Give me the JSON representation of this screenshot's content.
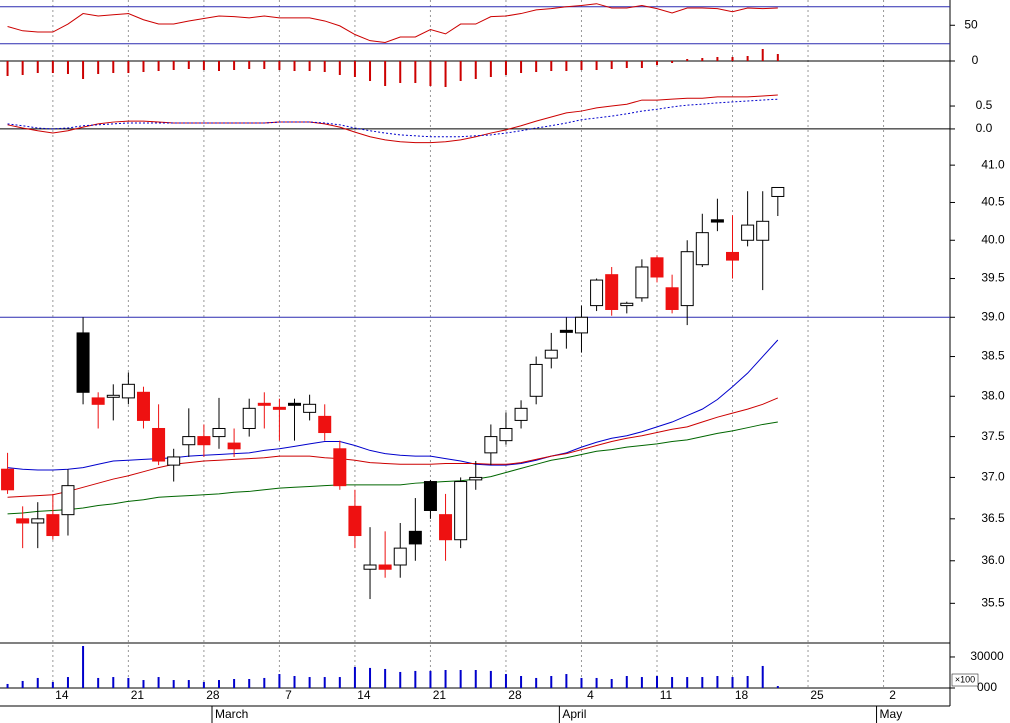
{
  "chart_data": [
    {
      "type": "line",
      "ylim": [
        -8,
        91
      ],
      "yticks": [
        50
      ],
      "levels": [
        20,
        80
      ],
      "level_color": "#2b2bb0",
      "series": [
        {
          "color": "#cc0000",
          "values": [
            48,
            41,
            39,
            39,
            52,
            69,
            65,
            67,
            69,
            59,
            52,
            52,
            57,
            61,
            65,
            64,
            62,
            65,
            62,
            62,
            62,
            57,
            49,
            35,
            25,
            22,
            31,
            31,
            43,
            36,
            52,
            52,
            64,
            65,
            69,
            75,
            77,
            80,
            82,
            85,
            78,
            78,
            82,
            77,
            70,
            78,
            78,
            77,
            72,
            78,
            77,
            78
          ]
        }
      ]
    },
    {
      "type": "bar",
      "ylim": [
        -1.45,
        0.85
      ],
      "yticks": [
        0
      ],
      "levels": [
        0
      ],
      "level_color": "#000000",
      "color": "#cc0000",
      "values": [
        -0.75,
        -0.7,
        -0.6,
        -0.6,
        -0.65,
        -0.9,
        -0.65,
        -0.6,
        -0.6,
        -0.55,
        -0.5,
        -0.45,
        -0.4,
        -0.45,
        -0.5,
        -0.45,
        -0.4,
        -0.4,
        -0.45,
        -0.5,
        -0.5,
        -0.55,
        -0.7,
        -0.8,
        -1.0,
        -1.25,
        -1.1,
        -1.1,
        -1.25,
        -1.3,
        -1.0,
        -0.9,
        -0.8,
        -0.7,
        -0.6,
        -0.55,
        -0.5,
        -0.5,
        -0.45,
        -0.45,
        -0.4,
        -0.35,
        -0.35,
        -0.2,
        -0.1,
        0.1,
        0.15,
        0.2,
        0.2,
        0.25,
        0.6,
        0.35
      ]
    },
    {
      "type": "line",
      "ylim": [
        -0.46,
        0.85
      ],
      "yticks": [
        {
          "value": 0,
          "label": "0.0"
        },
        0.5
      ],
      "levels": [
        0
      ],
      "level_color": "#000000",
      "series": [
        {
          "color": "#cc0000",
          "values": [
            0.09,
            0.02,
            -0.04,
            -0.09,
            -0.04,
            0.04,
            0.11,
            0.15,
            0.17,
            0.17,
            0.15,
            0.13,
            0.13,
            0.13,
            0.13,
            0.13,
            0.13,
            0.13,
            0.15,
            0.15,
            0.15,
            0.11,
            0.04,
            -0.07,
            -0.17,
            -0.24,
            -0.28,
            -0.3,
            -0.3,
            -0.28,
            -0.24,
            -0.17,
            -0.09,
            -0.02,
            0.07,
            0.17,
            0.26,
            0.35,
            0.39,
            0.46,
            0.5,
            0.54,
            0.63,
            0.63,
            0.65,
            0.67,
            0.67,
            0.7,
            0.7,
            0.7,
            0.72,
            0.74
          ]
        },
        {
          "color": "#0000cc",
          "dashed": true,
          "values": [
            0.11,
            0.07,
            0.02,
            0,
            0.02,
            0.07,
            0.09,
            0.11,
            0.13,
            0.13,
            0.13,
            0.13,
            0.13,
            0.13,
            0.13,
            0.13,
            0.13,
            0.13,
            0.15,
            0.15,
            0.15,
            0.13,
            0.09,
            0.02,
            -0.04,
            -0.09,
            -0.13,
            -0.15,
            -0.17,
            -0.17,
            -0.17,
            -0.15,
            -0.13,
            -0.09,
            -0.04,
            0.02,
            0.07,
            0.13,
            0.2,
            0.24,
            0.28,
            0.33,
            0.39,
            0.43,
            0.48,
            0.52,
            0.54,
            0.57,
            0.59,
            0.61,
            0.63,
            0.65
          ]
        }
      ]
    },
    {
      "type": "candlestick",
      "log_scale": true,
      "ylim": [
        35.04,
        41.49
      ],
      "yticks": [
        {
          "value": 41,
          "label": "41.0"
        },
        40.5,
        {
          "value": 40,
          "label": "40.0"
        },
        39.5,
        {
          "value": 39,
          "label": "39.0"
        },
        38.5,
        {
          "value": 38,
          "label": "38.0"
        },
        37.5,
        {
          "value": 37,
          "label": "37.0"
        },
        36.5,
        {
          "value": 36,
          "label": "36.0"
        },
        35.5
      ],
      "levels": [
        39
      ],
      "level_color": "#2b2bb0",
      "open": [
        37.1,
        36.5,
        36.45,
        36.55,
        36.55,
        38.8,
        37.98,
        37.98,
        37.98,
        38.05,
        37.6,
        37.15,
        37.4,
        37.5,
        37.5,
        37.42,
        37.6,
        37.9,
        37.85,
        37.9,
        37.8,
        37.75,
        37.35,
        36.65,
        35.9,
        35.95,
        35.95,
        36.35,
        36.95,
        36.55,
        36.25,
        36.97,
        37.3,
        37.45,
        37.7,
        38.0,
        38.48,
        38.8,
        38.8,
        39.15,
        39.55,
        39.15,
        39.25,
        39.77,
        39.38,
        39.15,
        39.68,
        40.27,
        39.84,
        40.0,
        40.0,
        40.58
      ],
      "high": [
        37.3,
        36.65,
        36.7,
        36.8,
        37.1,
        39.0,
        38.05,
        38.15,
        38.3,
        38.12,
        37.9,
        37.35,
        37.85,
        37.65,
        37.98,
        37.6,
        37.97,
        38.05,
        37.97,
        37.97,
        38.02,
        37.9,
        37.45,
        36.85,
        36.4,
        36.35,
        36.45,
        36.75,
        36.97,
        36.8,
        37.0,
        37.2,
        37.65,
        37.8,
        37.95,
        38.5,
        38.8,
        39.0,
        39.15,
        39.5,
        39.65,
        39.2,
        39.75,
        39.8,
        39.55,
        40.0,
        40.35,
        40.55,
        40.33,
        40.65,
        40.65,
        40.7
      ],
      "low": [
        36.8,
        36.15,
        36.15,
        36.25,
        36.3,
        37.9,
        37.6,
        37.7,
        37.9,
        37.6,
        37.15,
        36.95,
        37.25,
        37.25,
        37.35,
        37.25,
        37.5,
        37.6,
        37.45,
        37.45,
        37.7,
        37.45,
        36.85,
        36.15,
        35.55,
        35.8,
        35.8,
        36.0,
        36.5,
        36.0,
        36.15,
        36.85,
        37.15,
        37.4,
        37.6,
        37.9,
        38.35,
        38.6,
        38.55,
        39.08,
        39.02,
        39.05,
        39.2,
        39.45,
        39.05,
        38.9,
        39.65,
        40.12,
        39.5,
        39.92,
        39.35,
        40.32
      ],
      "close": [
        36.85,
        36.45,
        36.5,
        36.3,
        36.9,
        38.05,
        37.9,
        38.0,
        38.15,
        37.7,
        37.2,
        37.25,
        37.5,
        37.4,
        37.6,
        37.35,
        37.85,
        37.88,
        37.83,
        37.88,
        37.9,
        37.55,
        36.9,
        36.3,
        35.95,
        35.9,
        36.15,
        36.2,
        36.6,
        36.25,
        36.95,
        37.0,
        37.5,
        37.6,
        37.85,
        38.4,
        38.58,
        38.82,
        39.0,
        39.48,
        39.1,
        39.18,
        39.65,
        39.52,
        39.1,
        39.85,
        40.1,
        40.24,
        39.74,
        40.2,
        40.25,
        40.7
      ],
      "colors": [
        "#ee1111",
        "#ee1111",
        "#ffffff",
        "#ee1111",
        "#ffffff",
        "#000000",
        "#ee1111",
        "#ffffff",
        "#ffffff",
        "#ee1111",
        "#ee1111",
        "#ffffff",
        "#ffffff",
        "#ee1111",
        "#ffffff",
        "#ee1111",
        "#ffffff",
        "#ee1111",
        "#ee1111",
        "#000000",
        "#ffffff",
        "#ee1111",
        "#ee1111",
        "#ee1111",
        "#ffffff",
        "#ee1111",
        "#ffffff",
        "#000000",
        "#000000",
        "#ee1111",
        "#ffffff",
        "#ffffff",
        "#ffffff",
        "#ffffff",
        "#ffffff",
        "#ffffff",
        "#ffffff",
        "#000000",
        "#ffffff",
        "#ffffff",
        "#ee1111",
        "#ffffff",
        "#ffffff",
        "#ee1111",
        "#ee1111",
        "#ffffff",
        "#ffffff",
        "#000000",
        "#ee1111",
        "#ffffff",
        "#ffffff",
        "#ffffff"
      ],
      "series": [
        {
          "color": "#0000cc",
          "values": [
            37.12,
            37.1,
            37.09,
            37.09,
            37.1,
            37.12,
            37.16,
            37.2,
            37.21,
            37.22,
            37.23,
            37.24,
            37.26,
            37.27,
            37.28,
            37.29,
            37.3,
            37.33,
            37.35,
            37.38,
            37.41,
            37.44,
            37.44,
            37.39,
            37.33,
            37.29,
            37.27,
            37.26,
            37.26,
            37.23,
            37.2,
            37.16,
            37.15,
            37.15,
            37.17,
            37.21,
            37.26,
            37.3,
            37.37,
            37.43,
            37.48,
            37.51,
            37.56,
            37.62,
            37.68,
            37.76,
            37.84,
            37.96,
            38.12,
            38.29,
            38.5,
            38.71
          ]
        },
        {
          "color": "#cc0000",
          "values": [
            36.76,
            36.77,
            36.78,
            36.79,
            36.83,
            36.88,
            36.93,
            36.98,
            37.02,
            37.07,
            37.12,
            37.16,
            37.18,
            37.2,
            37.21,
            37.22,
            37.23,
            37.24,
            37.26,
            37.26,
            37.26,
            37.24,
            37.23,
            37.21,
            37.18,
            37.17,
            37.16,
            37.16,
            37.16,
            37.17,
            37.17,
            37.17,
            37.16,
            37.16,
            37.18,
            37.22,
            37.26,
            37.29,
            37.34,
            37.39,
            37.44,
            37.48,
            37.51,
            37.55,
            37.59,
            37.62,
            37.68,
            37.74,
            37.79,
            37.84,
            37.9,
            37.98
          ]
        },
        {
          "color": "#006600",
          "values": [
            36.56,
            36.57,
            36.59,
            36.6,
            36.61,
            36.63,
            36.66,
            36.68,
            36.71,
            36.73,
            36.76,
            36.77,
            36.78,
            36.79,
            36.8,
            36.82,
            36.83,
            36.85,
            36.87,
            36.88,
            36.89,
            36.9,
            36.91,
            36.91,
            36.91,
            36.91,
            36.91,
            36.93,
            36.94,
            36.95,
            36.96,
            36.98,
            37.01,
            37.06,
            37.11,
            37.16,
            37.21,
            37.24,
            37.28,
            37.32,
            37.34,
            37.37,
            37.39,
            37.41,
            37.44,
            37.46,
            37.5,
            37.54,
            37.57,
            37.61,
            37.65,
            37.68
          ]
        }
      ]
    },
    {
      "type": "bar",
      "ylim": [
        0,
        43500
      ],
      "yticks": [
        {
          "value": 0,
          "label": "000"
        },
        30000
      ],
      "unit_label": "×100",
      "color": "#0000cc",
      "values": [
        3900,
        6800,
        9700,
        5800,
        10600,
        40600,
        9700,
        10600,
        9700,
        7700,
        10600,
        7700,
        7700,
        5800,
        7700,
        8700,
        8700,
        9700,
        13500,
        11600,
        10600,
        10600,
        10600,
        20300,
        19400,
        18400,
        15500,
        16500,
        16500,
        17400,
        17400,
        17400,
        16500,
        13500,
        11600,
        9700,
        11600,
        13500,
        9700,
        9700,
        8700,
        11600,
        10600,
        11600,
        10600,
        10600,
        10600,
        11600,
        10600,
        11600,
        21300,
        1900
      ],
      "xlim": [
        -0.5,
        62.4
      ],
      "xticks": [
        {
          "value": 3,
          "label": "14"
        },
        {
          "value": 8,
          "label": "21"
        },
        {
          "value": 13,
          "label": "28"
        },
        {
          "value": 18,
          "label": "7"
        },
        {
          "value": 23,
          "label": "14"
        },
        {
          "value": 28,
          "label": "21"
        },
        {
          "value": 33,
          "label": "28"
        },
        {
          "value": 38,
          "label": "4"
        },
        {
          "value": 43,
          "label": "11"
        },
        {
          "value": 48,
          "label": "18"
        },
        {
          "value": 53,
          "label": "25"
        },
        {
          "value": 58,
          "label": "2"
        }
      ],
      "month_labels": [
        {
          "value": 14,
          "label": "March"
        },
        {
          "value": 37,
          "label": "April"
        },
        {
          "value": 58,
          "label": "May"
        }
      ],
      "grid": true
    }
  ]
}
